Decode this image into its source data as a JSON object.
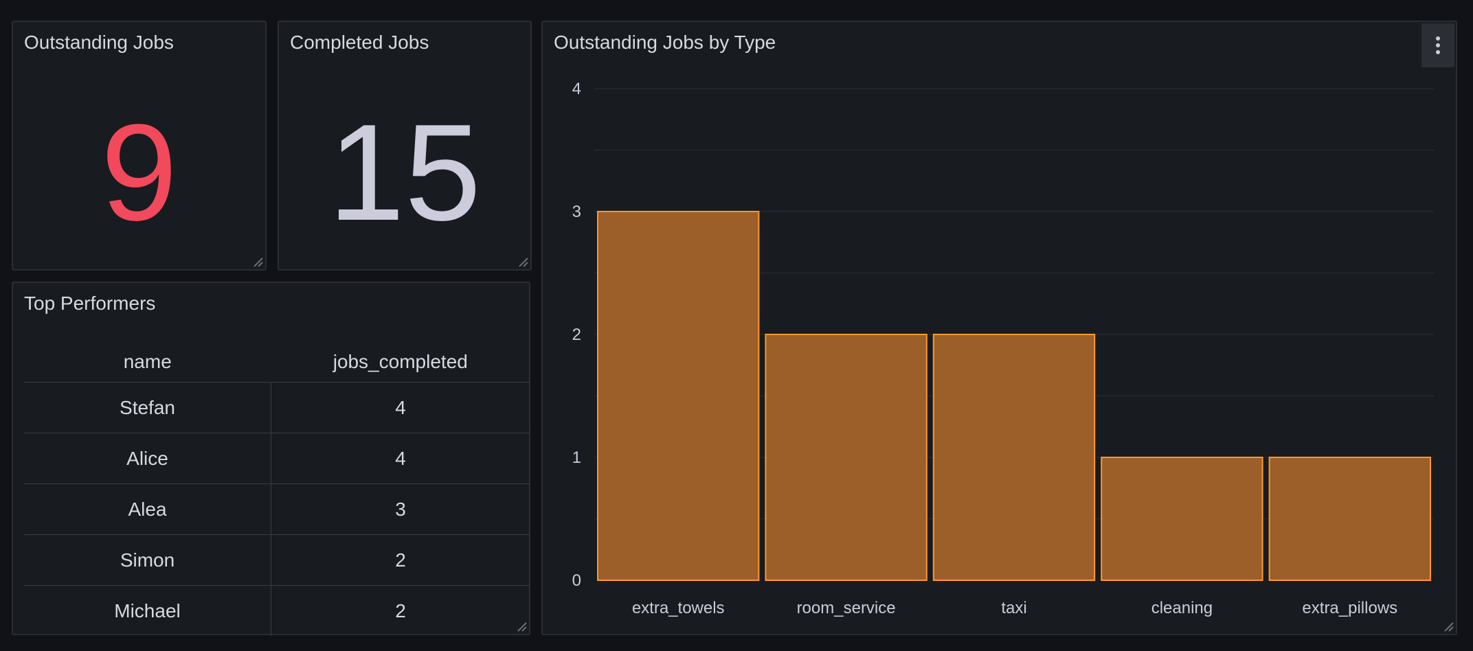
{
  "panels": {
    "outstanding": {
      "title": "Outstanding Jobs",
      "value": "9",
      "color": "#f2495c"
    },
    "completed": {
      "title": "Completed Jobs",
      "value": "15",
      "color": "#ccccdc"
    },
    "top_performers": {
      "title": "Top Performers",
      "columns": [
        "name",
        "jobs_completed"
      ],
      "rows": [
        [
          "Stefan",
          "4"
        ],
        [
          "Alice",
          "4"
        ],
        [
          "Alea",
          "3"
        ],
        [
          "Simon",
          "2"
        ],
        [
          "Michael",
          "2"
        ]
      ]
    },
    "jobs_by_type": {
      "title": "Outstanding Jobs by Type",
      "menu_icon": "vertical-ellipsis-icon"
    }
  },
  "colors": {
    "background": "#111217",
    "panel": "#181b1f",
    "bar_fill": "#9c5f2a",
    "bar_stroke": "#ff9830"
  },
  "chart_data": {
    "type": "bar",
    "title": "Outstanding Jobs by Type",
    "categories": [
      "extra_towels",
      "room_service",
      "taxi",
      "cleaning",
      "extra_pillows"
    ],
    "values": [
      3,
      2,
      2,
      1,
      1
    ],
    "ylim": [
      0,
      4
    ],
    "yticks": [
      0,
      1,
      2,
      3,
      4
    ],
    "grid": true
  }
}
